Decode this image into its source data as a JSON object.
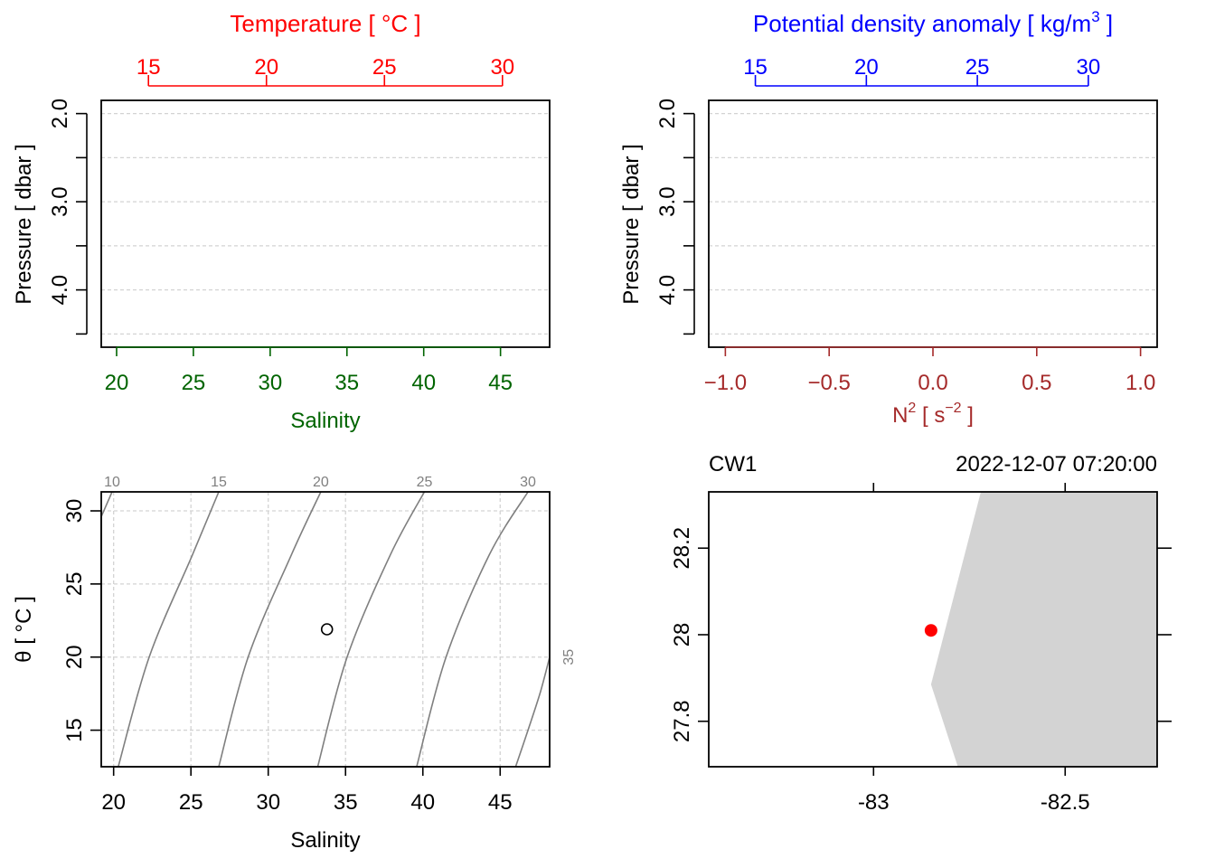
{
  "chart_data": [
    {
      "id": "profile-ts",
      "type": "line",
      "title": "",
      "top_axis": {
        "label": "Temperature [ °C ]",
        "ticks": [
          "15",
          "20",
          "25",
          "30"
        ],
        "tick_values": [
          15,
          20,
          25,
          30
        ],
        "range": [
          13.0,
          32.0
        ],
        "color": "#ff0000"
      },
      "bottom_axis": {
        "label": "Salinity",
        "ticks": [
          "20",
          "25",
          "30",
          "35",
          "40",
          "45"
        ],
        "tick_values": [
          20,
          25,
          30,
          35,
          40,
          45
        ],
        "range": [
          19.0,
          48.2
        ],
        "color": "#006400"
      },
      "left_axis": {
        "label": "Pressure [ dbar ]",
        "ticks": [
          "2.0",
          "3.0",
          "4.0"
        ],
        "tick_values": [
          2.0,
          3.0,
          4.0
        ],
        "minor_values": [
          2.5,
          3.5,
          4.5
        ],
        "range": [
          4.65,
          1.85
        ],
        "reversed": true
      },
      "grid": true,
      "series": []
    },
    {
      "id": "profile-density",
      "type": "line",
      "title": "",
      "top_axis": {
        "label": "Potential density anomaly [ kg/m",
        "label_sup": "3",
        "label_end": " ]",
        "ticks": [
          "15",
          "20",
          "25",
          "30"
        ],
        "tick_values": [
          15,
          20,
          25,
          30
        ],
        "range": [
          12.9,
          33.1
        ],
        "color": "#0000ff"
      },
      "bottom_axis": {
        "label": "N",
        "label_sup": "2",
        "label_mid": " [ s",
        "label_sup2": "−2",
        "label_end": " ]",
        "ticks": [
          "−1.0",
          "−0.5",
          "0.0",
          "0.5",
          "1.0"
        ],
        "tick_values": [
          -1.0,
          -0.5,
          0.0,
          0.5,
          1.0
        ],
        "range": [
          -1.08,
          1.08
        ],
        "color": "#a52a2a"
      },
      "left_axis": {
        "label": "Pressure [ dbar ]",
        "ticks": [
          "2.0",
          "3.0",
          "4.0"
        ],
        "tick_values": [
          2.0,
          3.0,
          4.0
        ],
        "minor_values": [
          2.5,
          3.5,
          4.5
        ],
        "range": [
          4.65,
          1.85
        ],
        "reversed": true
      },
      "grid": true,
      "series": []
    },
    {
      "id": "ts-diagram",
      "type": "scatter",
      "title": "",
      "xlabel": "Salinity",
      "ylabel": "θ [ °C ]",
      "x_ticks": [
        "20",
        "25",
        "30",
        "35",
        "40",
        "45"
      ],
      "x_tick_values": [
        20,
        25,
        30,
        35,
        40,
        45
      ],
      "y_ticks": [
        "15",
        "20",
        "25",
        "30"
      ],
      "y_tick_values": [
        15,
        20,
        25,
        30
      ],
      "xlim": [
        19.2,
        48.2
      ],
      "ylim": [
        12.5,
        31.3
      ],
      "grid": true,
      "points": [
        {
          "x": 33.8,
          "y": 21.9
        }
      ],
      "density_contours": [
        {
          "label": "10",
          "points": [
            [
              19.2,
              29.6
            ],
            [
              19.9,
              31.3
            ]
          ]
        },
        {
          "label": "15",
          "points": [
            [
              20.3,
              12.5
            ],
            [
              22.3,
              20.0
            ],
            [
              25.1,
              27.0
            ],
            [
              26.8,
              31.3
            ]
          ]
        },
        {
          "label": "20",
          "points": [
            [
              26.8,
              12.5
            ],
            [
              28.7,
              20.0
            ],
            [
              31.5,
              27.0
            ],
            [
              33.4,
              31.3
            ]
          ]
        },
        {
          "label": "25",
          "points": [
            [
              33.2,
              12.5
            ],
            [
              35.1,
              20.0
            ],
            [
              37.9,
              27.0
            ],
            [
              40.1,
              31.3
            ]
          ]
        },
        {
          "label": "30",
          "points": [
            [
              39.6,
              12.5
            ],
            [
              41.5,
              20.0
            ],
            [
              44.3,
              27.0
            ],
            [
              46.8,
              31.3
            ]
          ]
        },
        {
          "label": "35",
          "points": [
            [
              46.0,
              12.5
            ],
            [
              46.8,
              15.0
            ],
            [
              47.6,
              17.6
            ],
            [
              48.2,
              20.0
            ]
          ]
        }
      ]
    },
    {
      "id": "station-map",
      "type": "scatter",
      "title_left": "CW1",
      "title_right": "2022-12-07 07:20:00",
      "x_ticks": [
        "-83",
        "-82.5"
      ],
      "x_tick_values": [
        -83.0,
        -82.5
      ],
      "y_ticks": [
        "27.8",
        "28",
        "28.2"
      ],
      "y_tick_values": [
        27.8,
        28.0,
        28.2
      ],
      "xlim": [
        -83.43,
        -82.26
      ],
      "ylim": [
        27.695,
        28.33
      ],
      "station": {
        "lon": -82.85,
        "lat": 28.01,
        "color": "#ff0000"
      },
      "land_color": "#d3d3d3",
      "land_polygon": [
        [
          -82.72,
          28.33
        ],
        [
          -82.26,
          28.33
        ],
        [
          -82.26,
          27.695
        ],
        [
          -82.78,
          27.695
        ],
        [
          -82.85,
          27.885
        ]
      ]
    }
  ]
}
